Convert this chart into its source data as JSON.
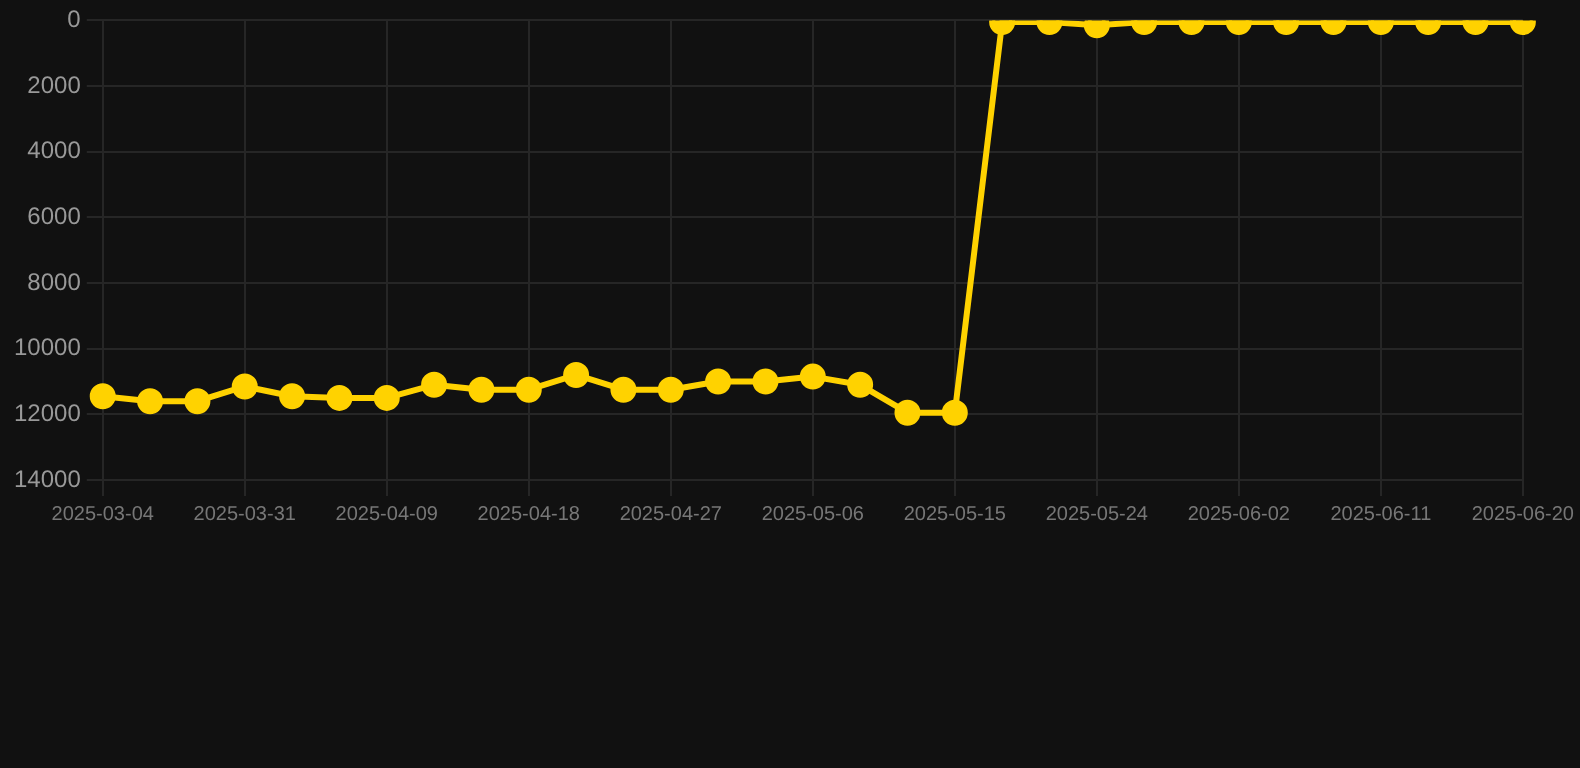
{
  "chart_data": {
    "type": "line",
    "categories": [
      "2025-03-04",
      null,
      null,
      "2025-03-31",
      null,
      null,
      "2025-04-09",
      null,
      null,
      "2025-04-18",
      null,
      null,
      "2025-04-27",
      null,
      null,
      "2025-05-06",
      null,
      null,
      "2025-05-15",
      null,
      null,
      "2025-05-24",
      null,
      null,
      "2025-06-02",
      null,
      null,
      "2025-06-11",
      null,
      null,
      "2025-06-20"
    ],
    "series": [
      {
        "color": "#ffd200",
        "values": [
          11450,
          11600,
          11600,
          11150,
          11450,
          11500,
          11500,
          11100,
          11250,
          11250,
          10800,
          11250,
          11250,
          11000,
          11000,
          10850,
          11100,
          11950,
          11950,
          50,
          50,
          150,
          50,
          50,
          50,
          50,
          50,
          50,
          50,
          50,
          50
        ]
      }
    ],
    "ylim": [
      14000,
      0
    ],
    "yticks": [
      0,
      2000,
      4000,
      6000,
      8000,
      10000,
      12000,
      14000
    ],
    "grid": true,
    "legend": false,
    "marker": "circle",
    "line_style": "solid"
  }
}
